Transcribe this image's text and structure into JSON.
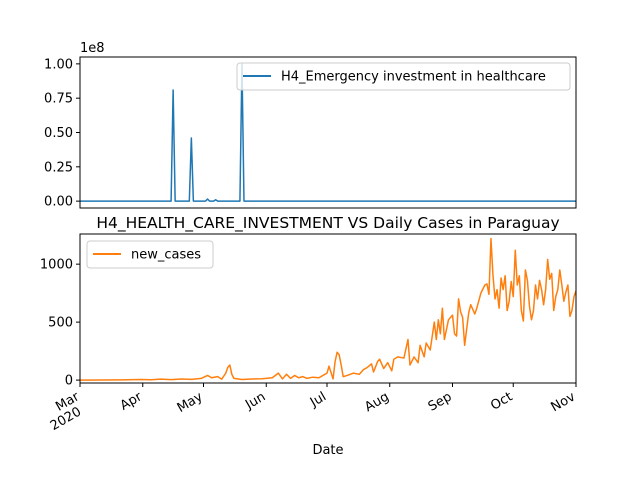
{
  "chart_data": [
    {
      "type": "line",
      "title": "",
      "xlabel": "",
      "ylabel": "",
      "y_scale_label": "1e8",
      "ylim": [
        -5000000,
        105000000
      ],
      "yticks": [
        0,
        25000000,
        50000000,
        75000000,
        100000000
      ],
      "ytick_labels": [
        "0.00",
        "0.25",
        "0.50",
        "0.75",
        "1.00"
      ],
      "x_days_range": [
        0,
        245
      ],
      "grid": false,
      "legend_position": "top-right",
      "series": [
        {
          "name": "H4_Emergency investment in healthcare",
          "color": "#1f77b4",
          "points": [
            [
              0,
              0
            ],
            [
              45,
              0
            ],
            [
              46,
              81000000
            ],
            [
              47,
              0
            ],
            [
              54,
              0
            ],
            [
              55,
              46000000
            ],
            [
              56,
              0
            ],
            [
              62,
              0
            ],
            [
              63,
              1500000
            ],
            [
              64,
              0
            ],
            [
              66,
              0
            ],
            [
              67,
              1000000
            ],
            [
              68,
              0
            ],
            [
              79,
              0
            ],
            [
              80,
              100000000
            ],
            [
              81,
              0
            ],
            [
              245,
              0
            ]
          ]
        }
      ]
    },
    {
      "type": "line",
      "title": "H4_HEALTH_CARE_INVESTMENT VS Daily Cases in Paraguay",
      "xlabel": "Date",
      "ylabel": "",
      "ylim": [
        -25,
        1260
      ],
      "yticks": [
        0,
        500,
        1000
      ],
      "ytick_labels": [
        "0",
        "500",
        "1000"
      ],
      "x_days_range": [
        0,
        245
      ],
      "xticks": [
        {
          "day": 0,
          "label": "Mar",
          "sub": "2020"
        },
        {
          "day": 31,
          "label": "Apr",
          "sub": ""
        },
        {
          "day": 61,
          "label": "May",
          "sub": ""
        },
        {
          "day": 92,
          "label": "Jun",
          "sub": ""
        },
        {
          "day": 122,
          "label": "Jul",
          "sub": ""
        },
        {
          "day": 153,
          "label": "Aug",
          "sub": ""
        },
        {
          "day": 184,
          "label": "Sep",
          "sub": ""
        },
        {
          "day": 214,
          "label": "Oct",
          "sub": ""
        },
        {
          "day": 245,
          "label": "Nov",
          "sub": ""
        }
      ],
      "grid": false,
      "legend_position": "top-left",
      "series": [
        {
          "name": "new_cases",
          "color": "#ff7f0e",
          "points": [
            [
              0,
              0
            ],
            [
              10,
              1
            ],
            [
              20,
              2
            ],
            [
              30,
              5
            ],
            [
              35,
              3
            ],
            [
              40,
              8
            ],
            [
              45,
              4
            ],
            [
              50,
              10
            ],
            [
              55,
              6
            ],
            [
              60,
              15
            ],
            [
              63,
              40
            ],
            [
              65,
              20
            ],
            [
              68,
              30
            ],
            [
              70,
              8
            ],
            [
              72,
              60
            ],
            [
              73,
              110
            ],
            [
              74,
              130
            ],
            [
              75,
              50
            ],
            [
              76,
              15
            ],
            [
              80,
              5
            ],
            [
              85,
              10
            ],
            [
              90,
              12
            ],
            [
              95,
              20
            ],
            [
              98,
              60
            ],
            [
              100,
              10
            ],
            [
              102,
              50
            ],
            [
              104,
              15
            ],
            [
              106,
              40
            ],
            [
              108,
              20
            ],
            [
              110,
              30
            ],
            [
              112,
              15
            ],
            [
              115,
              25
            ],
            [
              118,
              20
            ],
            [
              120,
              40
            ],
            [
              122,
              60
            ],
            [
              123,
              120
            ],
            [
              125,
              10
            ],
            [
              126,
              160
            ],
            [
              127,
              240
            ],
            [
              128,
              220
            ],
            [
              129,
              130
            ],
            [
              130,
              30
            ],
            [
              132,
              40
            ],
            [
              135,
              60
            ],
            [
              138,
              50
            ],
            [
              140,
              90
            ],
            [
              142,
              110
            ],
            [
              144,
              140
            ],
            [
              145,
              70
            ],
            [
              147,
              160
            ],
            [
              148,
              180
            ],
            [
              150,
              100
            ],
            [
              152,
              150
            ],
            [
              154,
              80
            ],
            [
              155,
              180
            ],
            [
              157,
              200
            ],
            [
              160,
              190
            ],
            [
              162,
              350
            ],
            [
              163,
              130
            ],
            [
              165,
              200
            ],
            [
              167,
              150
            ],
            [
              168,
              300
            ],
            [
              170,
              200
            ],
            [
              171,
              320
            ],
            [
              173,
              260
            ],
            [
              175,
              500
            ],
            [
              176,
              350
            ],
            [
              177,
              520
            ],
            [
              178,
              400
            ],
            [
              179,
              620
            ],
            [
              180,
              350
            ],
            [
              182,
              520
            ],
            [
              184,
              560
            ],
            [
              185,
              400
            ],
            [
              186,
              380
            ],
            [
              187,
              700
            ],
            [
              188,
              590
            ],
            [
              189,
              540
            ],
            [
              190,
              300
            ],
            [
              192,
              580
            ],
            [
              193,
              650
            ],
            [
              195,
              570
            ],
            [
              196,
              620
            ],
            [
              198,
              750
            ],
            [
              200,
              820
            ],
            [
              201,
              830
            ],
            [
              202,
              740
            ],
            [
              203,
              1220
            ],
            [
              204,
              900
            ],
            [
              205,
              700
            ],
            [
              206,
              780
            ],
            [
              207,
              620
            ],
            [
              208,
              880
            ],
            [
              209,
              780
            ],
            [
              210,
              900
            ],
            [
              211,
              600
            ],
            [
              212,
              680
            ],
            [
              213,
              850
            ],
            [
              214,
              720
            ],
            [
              215,
              1120
            ],
            [
              216,
              820
            ],
            [
              217,
              900
            ],
            [
              218,
              600
            ],
            [
              219,
              510
            ],
            [
              220,
              950
            ],
            [
              221,
              860
            ],
            [
              222,
              640
            ],
            [
              223,
              520
            ],
            [
              224,
              600
            ],
            [
              225,
              820
            ],
            [
              226,
              700
            ],
            [
              227,
              860
            ],
            [
              228,
              780
            ],
            [
              229,
              650
            ],
            [
              230,
              780
            ],
            [
              231,
              1040
            ],
            [
              232,
              870
            ],
            [
              233,
              920
            ],
            [
              234,
              600
            ],
            [
              235,
              720
            ],
            [
              236,
              780
            ],
            [
              237,
              950
            ],
            [
              238,
              820
            ],
            [
              239,
              680
            ],
            [
              240,
              760
            ],
            [
              241,
              820
            ],
            [
              242,
              550
            ],
            [
              243,
              600
            ],
            [
              244,
              720
            ],
            [
              245,
              770
            ]
          ]
        }
      ]
    }
  ]
}
